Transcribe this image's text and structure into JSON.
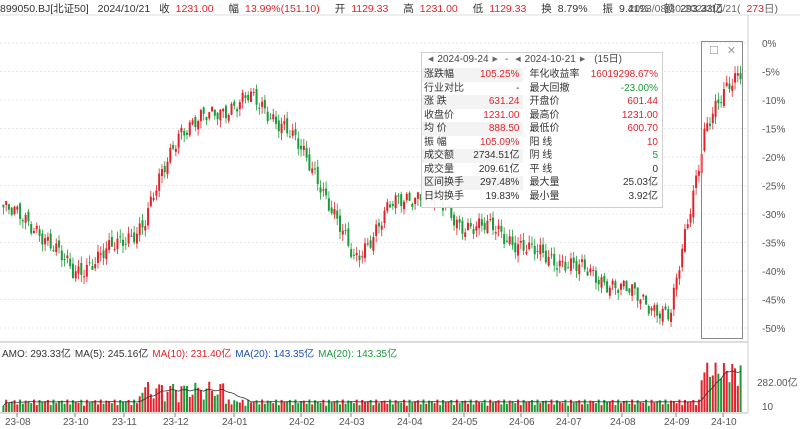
{
  "header": {
    "code": "899050.BJ[北证50]",
    "date": "2024/10/21",
    "close_label": "收",
    "close_value": "1231.00",
    "change_label": "幅",
    "change_value": "13.99%(151.10)",
    "open_label": "开",
    "open_value": "1129.33",
    "high_label": "高",
    "high_value": "1231.00",
    "low_label": "低",
    "low_value": "1129.33",
    "turnover_label": "换",
    "turnover_value": "8.79%",
    "amplitude_label": "振",
    "amplitude_value": "9.41%",
    "amount_label": "额",
    "amount_value": "293.33亿",
    "range_text": "2023/08/30-2024/10/21(",
    "range_days": "273",
    "range_suffix": "日)"
  },
  "y_axis": {
    "price_ticks": [
      "0%",
      "-5%",
      "-10%",
      "-15%",
      "-20%",
      "-25%",
      "-30%",
      "-35%",
      "-40%",
      "-45%",
      "-50%"
    ],
    "volume_ticks": [
      "282.00亿",
      "10"
    ]
  },
  "x_axis": {
    "ticks": [
      "23-08",
      "23-10",
      "23-11",
      "23-12",
      "24-01",
      "24-02",
      "24-03",
      "24-04",
      "24-05",
      "24-06",
      "24-07",
      "24-08",
      "24-09",
      "24-10"
    ]
  },
  "popup": {
    "start_date": "2024-09-24",
    "end_date": "2024-10-21",
    "days": "(15日)",
    "sep": "-",
    "rows": [
      {
        "l1": "涨跌幅",
        "v1": "105.25%",
        "l2": "年化收益率",
        "v2": "16019298.67%",
        "c1": "red",
        "c2": "red"
      },
      {
        "l1": "行业对比",
        "v1": "-",
        "l2": "最大回撤",
        "v2": "-23.00%",
        "c1": "",
        "c2": "green"
      },
      {
        "l1": "涨  跌",
        "v1": "631.24",
        "l2": "开盘价",
        "v2": "601.44",
        "c1": "red",
        "c2": "red"
      },
      {
        "l1": "收盘价",
        "v1": "1231.00",
        "l2": "最高价",
        "v2": "1231.00",
        "c1": "red",
        "c2": "red"
      },
      {
        "l1": "均  价",
        "v1": "888.50",
        "l2": "最低价",
        "v2": "600.70",
        "c1": "red",
        "c2": "red"
      },
      {
        "l1": "振  幅",
        "v1": "105.09%",
        "l2": "阳  线",
        "v2": "10",
        "c1": "red",
        "c2": "red"
      },
      {
        "l1": "成交额",
        "v1": "2734.51亿",
        "l2": "阴  线",
        "v2": "5",
        "c1": "",
        "c2": "green"
      },
      {
        "l1": "成交量",
        "v1": "209.61亿",
        "l2": "平  线",
        "v2": "0",
        "c1": "",
        "c2": ""
      },
      {
        "l1": "区间换手",
        "v1": "297.48%",
        "l2": "最大量",
        "v2": "25.03亿",
        "c1": "",
        "c2": ""
      },
      {
        "l1": "日均换手",
        "v1": "19.83%",
        "l2": "最小量",
        "v2": "3.92亿",
        "c1": "",
        "c2": ""
      }
    ]
  },
  "volume_indicators": [
    {
      "text": "AMO: 293.33亿",
      "color": "#333333"
    },
    {
      "text": "MA(5): 245.16亿",
      "color": "#333333"
    },
    {
      "text": "MA(10): 231.40亿",
      "color": "#e0232b"
    },
    {
      "text": "MA(20): 143.35亿",
      "color": "#1f4fb5"
    },
    {
      "text": "MA(20): 143.35亿",
      "color": "#1a9b3a"
    }
  ],
  "colors": {
    "up": "#e0232b",
    "down": "#1a9b3a",
    "ma": "#333333",
    "grid": "#e8e8e8"
  },
  "chart_data": {
    "type": "candlestick",
    "title": "899050.BJ[北证50]",
    "y_unit": "% from period high",
    "ylim": [
      -52,
      0
    ],
    "x_ticks": [
      "23-08",
      "23-10",
      "23-11",
      "23-12",
      "24-01",
      "24-02",
      "24-03",
      "24-04",
      "24-05",
      "24-06",
      "24-07",
      "24-08",
      "24-09",
      "24-10"
    ],
    "close_pct_path": [
      {
        "x": "23-08",
        "y": -30
      },
      {
        "x": "23-09",
        "y": -34
      },
      {
        "x": "23-10",
        "y": -42
      },
      {
        "x": "23-10",
        "y": -38
      },
      {
        "x": "23-11",
        "y": -33
      },
      {
        "x": "23-11",
        "y": -16
      },
      {
        "x": "23-12",
        "y": -13
      },
      {
        "x": "23-12",
        "y": -10
      },
      {
        "x": "24-01",
        "y": -15
      },
      {
        "x": "24-01",
        "y": -25
      },
      {
        "x": "24-02",
        "y": -40
      },
      {
        "x": "24-02",
        "y": -30
      },
      {
        "x": "24-03",
        "y": -27
      },
      {
        "x": "24-04",
        "y": -33
      },
      {
        "x": "24-04",
        "y": -34
      },
      {
        "x": "24-05",
        "y": -38
      },
      {
        "x": "24-06",
        "y": -40
      },
      {
        "x": "24-07",
        "y": -43
      },
      {
        "x": "24-08",
        "y": -46
      },
      {
        "x": "24-09",
        "y": -50
      },
      {
        "x": "24-10",
        "y": -15
      },
      {
        "x": "24-10",
        "y": -5
      }
    ],
    "volume_ticks": [
      "282.00亿",
      "10"
    ]
  }
}
